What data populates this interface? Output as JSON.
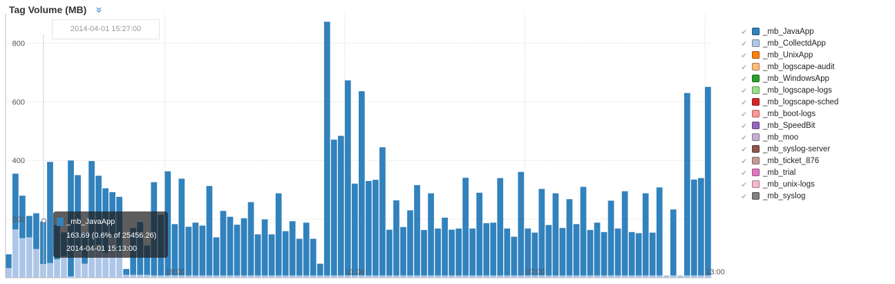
{
  "header": {
    "title": "Tag Volume (MB)",
    "collapse_icon": "chevron-double-down-icon"
  },
  "colors": {
    "primary": "#3182bd",
    "secondary": "#aec7e8",
    "grid": "#cccccc"
  },
  "hover": {
    "time_label": "2014-04-01 15:27:00",
    "tooltip": {
      "series": "_mb_JavaApp",
      "value": "163.69 (0.6% of 25456.26)",
      "time": "2014-04-01 15:13:00"
    }
  },
  "legend": {
    "items": [
      {
        "label": "_mb_JavaApp",
        "color": "#3182bd"
      },
      {
        "label": "_mb_CollectdApp",
        "color": "#aec7e8"
      },
      {
        "label": "_mb_UnixApp",
        "color": "#ff7f0e"
      },
      {
        "label": "_mb_logscape-audit",
        "color": "#ffbb78"
      },
      {
        "label": "_mb_WindowsApp",
        "color": "#2ca02c"
      },
      {
        "label": "_mb_logscape-logs",
        "color": "#98df8a"
      },
      {
        "label": "_mb_logscape-sched",
        "color": "#d62728"
      },
      {
        "label": "_mb_boot-logs",
        "color": "#ff9896"
      },
      {
        "label": "_mb_SpeedBit",
        "color": "#9467bd"
      },
      {
        "label": "_mb_moo",
        "color": "#c5b0d5"
      },
      {
        "label": "_mb_syslog-server",
        "color": "#8c564b"
      },
      {
        "label": "_mb_ticket_876",
        "color": "#c49c94"
      },
      {
        "label": "_mb_trial",
        "color": "#e377c2"
      },
      {
        "label": "_mb_unix-logs",
        "color": "#f7b6d2"
      },
      {
        "label": "_mb_syslog",
        "color": "#7f7f7f"
      }
    ]
  },
  "chart_data": {
    "type": "bar",
    "stacked": true,
    "ylim": [
      0,
      900
    ],
    "yticks": [
      200,
      400,
      600,
      800
    ],
    "xticks": [
      {
        "label": "19:00",
        "index": 23
      },
      {
        "label": "01:00",
        "index": 49
      },
      {
        "label": "07:00",
        "index": 75
      },
      {
        "label": "13:00",
        "index": 101
      }
    ],
    "grid": true,
    "legend_position": "right",
    "series": [
      {
        "name": "_mb_JavaApp",
        "values": [
          47,
          190,
          145,
          73,
          122,
          145,
          345,
          117,
          80,
          395,
          260,
          107,
          303,
          235,
          220,
          152,
          186,
          20,
          160,
          180,
          100,
          318,
          207,
          355,
          175,
          330,
          166,
          180,
          170,
          305,
          130,
          220,
          200,
          173,
          195,
          250,
          140,
          191,
          140,
          280,
          151,
          185,
          125,
          180,
          125,
          40,
          865,
          463,
          476,
          665,
          313,
          628,
          322,
          326,
          437,
          156,
          256,
          165,
          222,
          308,
          155,
          280,
          160,
          197,
          156,
          160,
          333,
          160,
          282,
          178,
          180,
          332,
          160,
          132,
          353,
          160,
          146,
          295,
          172,
          280,
          162,
          260,
          175,
          302,
          155,
          180,
          148,
          255,
          160,
          287,
          148,
          144,
          280,
          146,
          300,
          0,
          225,
          0,
          622,
          327,
          332,
          643
        ],
        "color": "#3182bd"
      },
      {
        "name": "_mb_CollectdApp",
        "values": [
          33,
          165,
          135,
          138,
          98,
          47,
          50,
          63,
          75,
          5,
          90,
          48,
          95,
          113,
          85,
          140,
          90,
          10,
          10,
          10,
          10,
          8,
          8,
          8,
          8,
          8,
          8,
          8,
          8,
          8,
          8,
          8,
          8,
          8,
          8,
          8,
          8,
          8,
          8,
          8,
          8,
          8,
          8,
          8,
          8,
          8,
          8,
          8,
          8,
          8,
          8,
          8,
          8,
          8,
          8,
          8,
          8,
          8,
          8,
          8,
          8,
          8,
          8,
          8,
          8,
          8,
          8,
          8,
          8,
          8,
          8,
          8,
          8,
          8,
          8,
          8,
          8,
          8,
          8,
          8,
          8,
          8,
          8,
          8,
          8,
          8,
          8,
          8,
          8,
          8,
          8,
          8,
          8,
          8,
          8,
          8,
          8,
          8,
          8,
          8,
          8,
          8
        ],
        "color": "#aec7e8"
      }
    ]
  }
}
